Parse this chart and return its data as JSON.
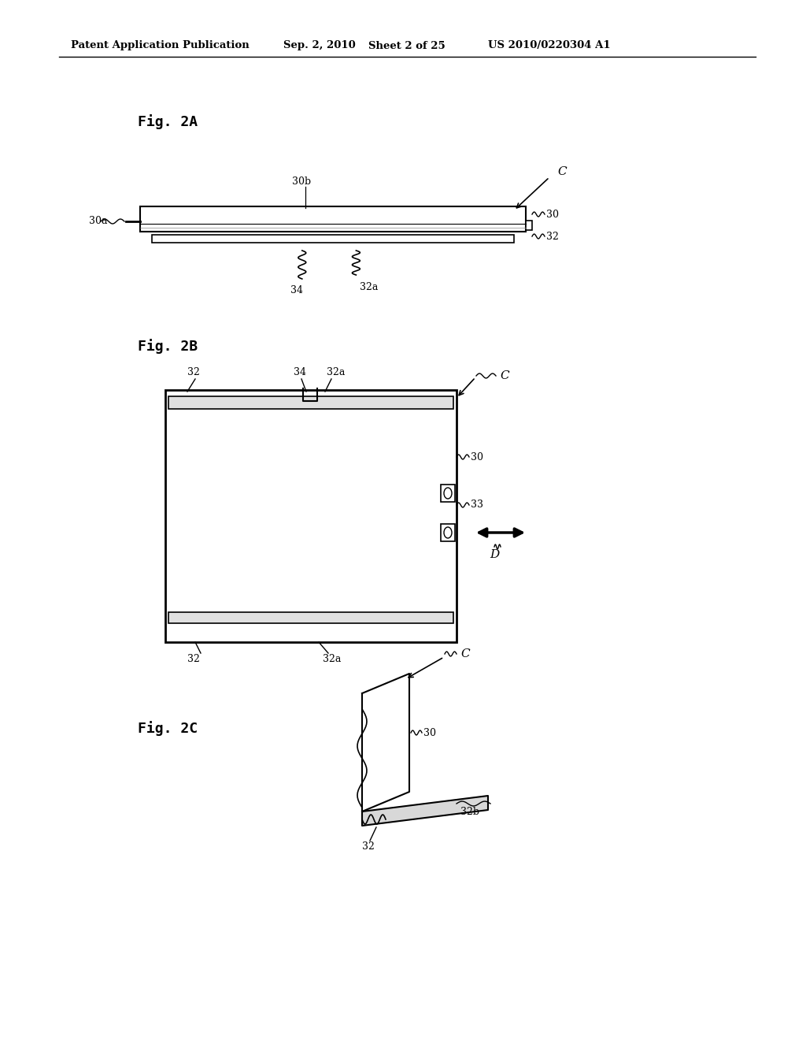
{
  "bg_color": "#ffffff",
  "header_text": "Patent Application Publication",
  "header_date": "Sep. 2, 2010",
  "header_sheet": "Sheet 2 of 25",
  "header_patent": "US 2010/0220304 A1",
  "fig2a_label": "Fig. 2A",
  "fig2b_label": "Fig. 2B",
  "fig2c_label": "Fig. 2C"
}
